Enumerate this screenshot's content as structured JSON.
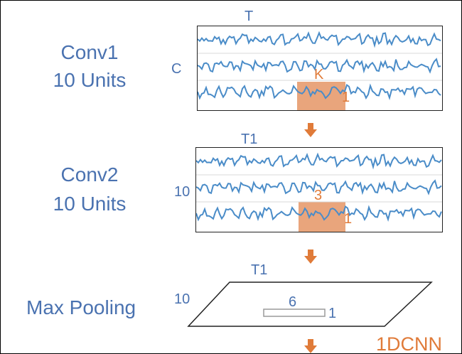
{
  "conv1": {
    "title": "Conv1",
    "units": "10 Units",
    "time_label": "T",
    "channel_label": "C",
    "kernel_label": "K",
    "kernel_width_label": "1"
  },
  "conv2": {
    "title": "Conv2",
    "units": "10 Units",
    "time_label": "T1",
    "channel_label": "10",
    "kernel_label": "3",
    "kernel_width_label": "1"
  },
  "pooling": {
    "title": "Max Pooling",
    "time_label": "T1",
    "channel_label": "10",
    "window_label": "6",
    "window_width_label": "1"
  },
  "model_label": "1DCNN",
  "colors": {
    "text_blue": "#4a72b0",
    "accent_orange": "#e07b39",
    "wave_blue": "#4a8cc8",
    "highlight": "#e9a57c"
  }
}
